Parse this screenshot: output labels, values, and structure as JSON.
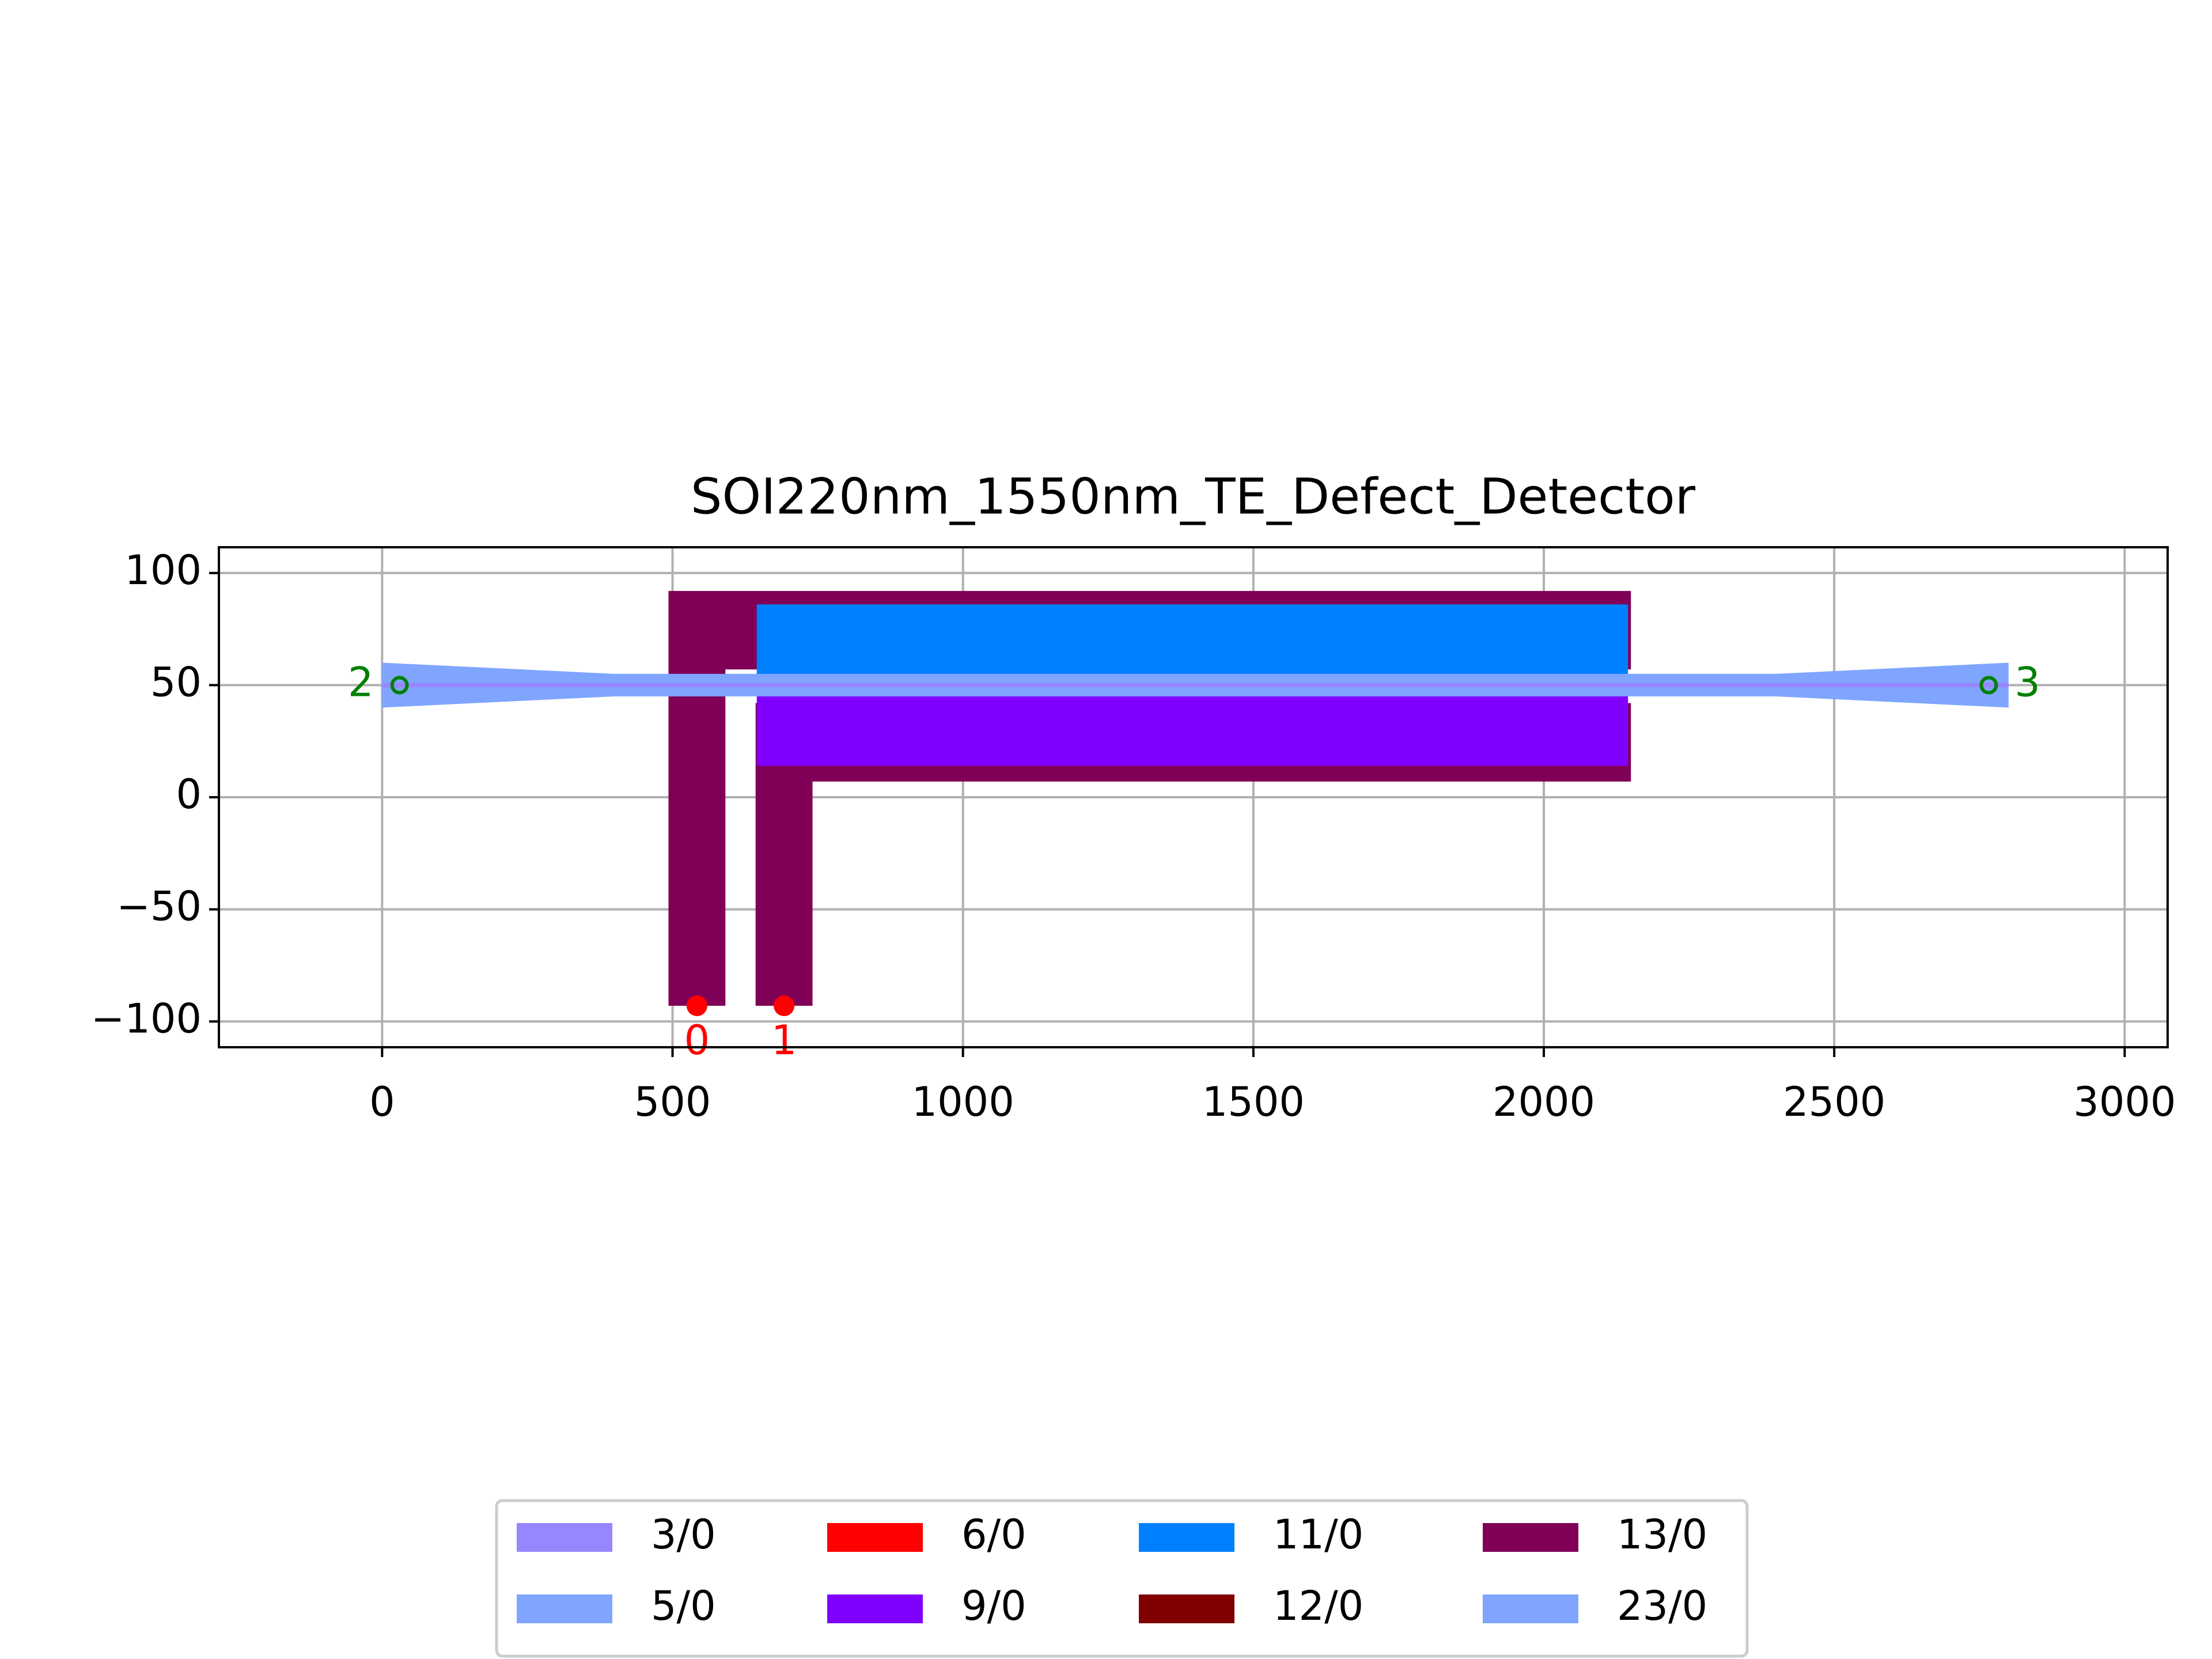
{
  "chart_data": {
    "type": "layout",
    "title": "SOI220nm_1550nm_TE_Defect_Detector",
    "xlim": [
      -281,
      3074
    ],
    "ylim": [
      -111.5,
      111.5
    ],
    "xticks": [
      0,
      500,
      1000,
      1500,
      2000,
      2500,
      3000
    ],
    "yticks": [
      {
        "value": -100,
        "label": "−100"
      },
      {
        "value": -50,
        "label": "−50"
      },
      0,
      50,
      100
    ],
    "grid": true,
    "legend_position": "lower center",
    "layers": [
      {
        "name": "3/0",
        "color": "#9787ff",
        "polygons": [
          [
            [
              0,
              51
            ],
            [
              2800,
              51
            ],
            [
              2800,
              49
            ],
            [
              0,
              49
            ]
          ]
        ]
      },
      {
        "name": "5/0",
        "color": "#7fa5ff",
        "polygons": [
          [
            [
              0,
              60
            ],
            [
              400,
              55
            ],
            [
              2400,
              55
            ],
            [
              2800,
              60
            ],
            [
              2800,
              40
            ],
            [
              2400,
              45
            ],
            [
              400,
              45
            ],
            [
              0,
              40
            ]
          ]
        ]
      },
      {
        "name": "6/0",
        "color": "#ff0000"
      },
      {
        "name": "9/0",
        "color": "#8000ff",
        "polygons": [
          [
            [
              645,
              50
            ],
            [
              2145,
              50
            ],
            [
              2145,
              14
            ],
            [
              645,
              14
            ]
          ]
        ]
      },
      {
        "name": "11/0",
        "color": "#0080ff",
        "polygons": [
          [
            [
              645,
              86
            ],
            [
              2145,
              86
            ],
            [
              2145,
              50
            ],
            [
              645,
              50
            ]
          ]
        ]
      },
      {
        "name": "12/0",
        "color": "#800000"
      },
      {
        "name": "13/0",
        "color": "#800057",
        "polygons": [
          [
            [
              493,
              92
            ],
            [
              2150,
              92
            ],
            [
              2150,
              57
            ],
            [
              591,
              57
            ],
            [
              591,
              -93
            ],
            [
              493,
              -93
            ]
          ],
          [
            [
              643,
              42
            ],
            [
              2150,
              42
            ],
            [
              2150,
              7
            ],
            [
              741,
              7
            ],
            [
              741,
              -93
            ],
            [
              643,
              -93
            ]
          ]
        ]
      },
      {
        "name": "23/0",
        "color": "#7fa5ff",
        "polygons": [
          [
            [
              0,
              60
            ],
            [
              400,
              55
            ],
            [
              2400,
              55
            ],
            [
              2800,
              60
            ],
            [
              2800,
              40
            ],
            [
              2400,
              45
            ],
            [
              400,
              45
            ],
            [
              0,
              40
            ]
          ]
        ]
      }
    ],
    "ports": [
      {
        "name": "0",
        "x": 542,
        "y": -93,
        "color": "#ff0000"
      },
      {
        "name": "1",
        "x": 692,
        "y": -93,
        "color": "#ff0000"
      },
      {
        "name": "2",
        "x": 30,
        "y": 50,
        "color": "#008000"
      },
      {
        "name": "3",
        "x": 2766,
        "y": 50,
        "color": "#008000"
      }
    ]
  }
}
